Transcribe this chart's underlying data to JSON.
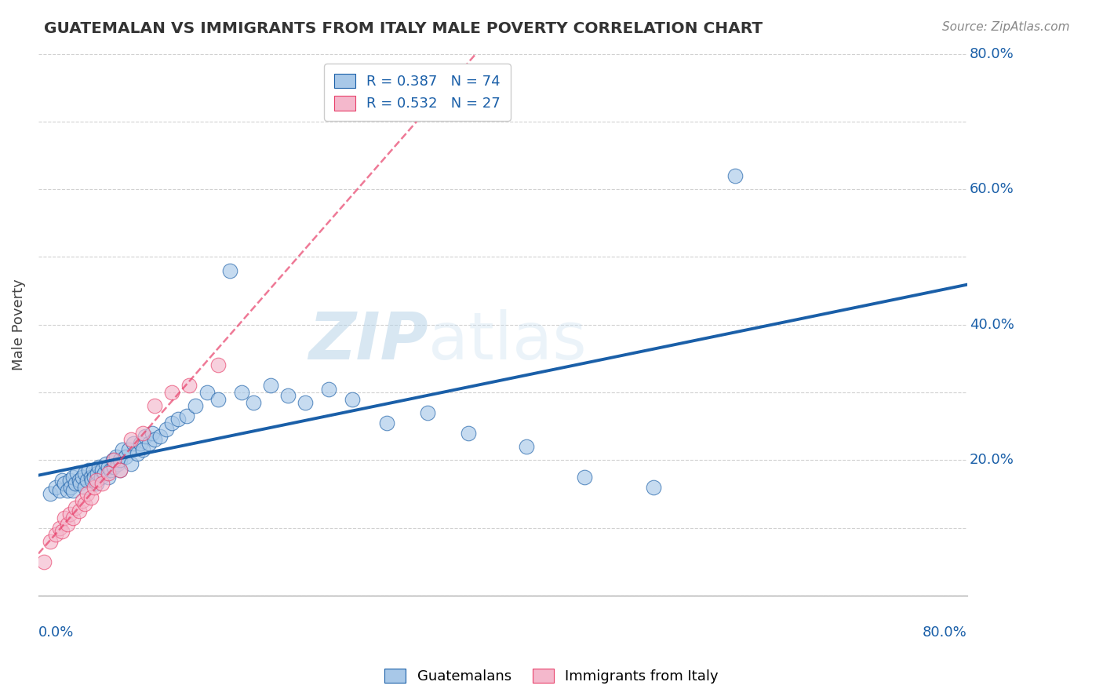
{
  "title": "GUATEMALAN VS IMMIGRANTS FROM ITALY MALE POVERTY CORRELATION CHART",
  "source": "Source: ZipAtlas.com",
  "ylabel": "Male Poverty",
  "legend_guatemalans": "Guatemalans",
  "legend_italy": "Immigrants from Italy",
  "r_guatemalans": 0.387,
  "n_guatemalans": 74,
  "r_italy": 0.532,
  "n_italy": 27,
  "color_guatemalans": "#a8c8e8",
  "color_italy": "#f4b8cc",
  "line_color_guatemalans": "#1a5fa8",
  "line_color_italy": "#e8406a",
  "watermark_zip": "ZIP",
  "watermark_atlas": "atlas",
  "xlim": [
    0.0,
    0.8
  ],
  "ylim": [
    0.0,
    0.8
  ],
  "guatemalans_x": [
    0.01,
    0.015,
    0.018,
    0.02,
    0.022,
    0.025,
    0.027,
    0.028,
    0.03,
    0.03,
    0.032,
    0.033,
    0.035,
    0.036,
    0.038,
    0.04,
    0.04,
    0.042,
    0.043,
    0.045,
    0.046,
    0.047,
    0.048,
    0.05,
    0.051,
    0.052,
    0.054,
    0.055,
    0.057,
    0.058,
    0.06,
    0.06,
    0.062,
    0.064,
    0.065,
    0.067,
    0.068,
    0.07,
    0.07,
    0.072,
    0.075,
    0.078,
    0.08,
    0.082,
    0.085,
    0.088,
    0.09,
    0.092,
    0.095,
    0.098,
    0.1,
    0.105,
    0.11,
    0.115,
    0.12,
    0.128,
    0.135,
    0.145,
    0.155,
    0.165,
    0.175,
    0.185,
    0.2,
    0.215,
    0.23,
    0.25,
    0.27,
    0.3,
    0.335,
    0.37,
    0.42,
    0.47,
    0.53,
    0.6
  ],
  "guatemalans_y": [
    0.15,
    0.16,
    0.155,
    0.17,
    0.165,
    0.155,
    0.17,
    0.16,
    0.155,
    0.175,
    0.165,
    0.18,
    0.17,
    0.165,
    0.175,
    0.16,
    0.18,
    0.17,
    0.185,
    0.175,
    0.17,
    0.185,
    0.175,
    0.165,
    0.18,
    0.19,
    0.175,
    0.185,
    0.18,
    0.195,
    0.175,
    0.19,
    0.185,
    0.2,
    0.19,
    0.205,
    0.195,
    0.185,
    0.2,
    0.215,
    0.205,
    0.215,
    0.195,
    0.225,
    0.21,
    0.225,
    0.215,
    0.235,
    0.225,
    0.24,
    0.23,
    0.235,
    0.245,
    0.255,
    0.26,
    0.265,
    0.28,
    0.3,
    0.29,
    0.48,
    0.3,
    0.285,
    0.31,
    0.295,
    0.285,
    0.305,
    0.29,
    0.255,
    0.27,
    0.24,
    0.22,
    0.175,
    0.16,
    0.62
  ],
  "italy_x": [
    0.005,
    0.01,
    0.015,
    0.018,
    0.02,
    0.022,
    0.025,
    0.027,
    0.03,
    0.032,
    0.035,
    0.038,
    0.04,
    0.042,
    0.045,
    0.048,
    0.05,
    0.055,
    0.06,
    0.065,
    0.07,
    0.08,
    0.09,
    0.1,
    0.115,
    0.13,
    0.155
  ],
  "italy_y": [
    0.05,
    0.08,
    0.09,
    0.1,
    0.095,
    0.115,
    0.105,
    0.12,
    0.115,
    0.13,
    0.125,
    0.14,
    0.135,
    0.15,
    0.145,
    0.16,
    0.17,
    0.165,
    0.18,
    0.2,
    0.185,
    0.23,
    0.24,
    0.28,
    0.3,
    0.31,
    0.34
  ]
}
